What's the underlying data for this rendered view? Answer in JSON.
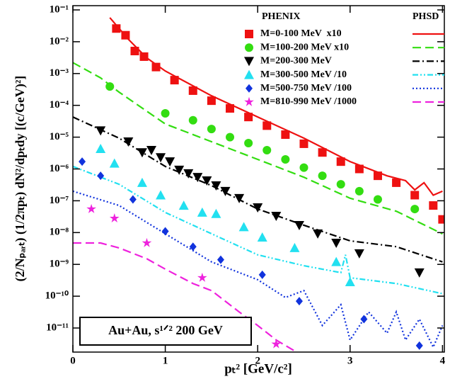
{
  "chart_data": {
    "type": "scatter",
    "log_y": true,
    "xlabel": "pₜ²  [GeV/c²]",
    "ylabel": "(2/Nₚₐᵣₜ) (1/2πpₜ) dN²/dpₜdy [(c/GeV)²]",
    "annotation": "Au+Au, s¹ᐟ² 200 GeV",
    "legend_data_header": "PHENIX",
    "legend_model_header": "PHSD",
    "legend_position": "upper right",
    "xlim": [
      0,
      4.02
    ],
    "ylim": [
      1.75e-12,
      0.136
    ],
    "xticks": [
      0,
      1,
      2,
      3,
      4
    ],
    "yticks": [
      {
        "value": 0.1,
        "label": "10⁻¹"
      },
      {
        "value": 0.01,
        "label": "10⁻²"
      },
      {
        "value": 0.001,
        "label": "10⁻³"
      },
      {
        "value": 0.0001,
        "label": "10⁻⁴"
      },
      {
        "value": 1e-05,
        "label": "10⁻⁵"
      },
      {
        "value": 1e-06,
        "label": "10⁻⁶"
      },
      {
        "value": 1e-07,
        "label": "10⁻⁷"
      },
      {
        "value": 1e-08,
        "label": "10⁻⁸"
      },
      {
        "value": 1e-09,
        "label": "10⁻⁹"
      },
      {
        "value": 1e-10,
        "label": "10⁻¹⁰"
      },
      {
        "value": 1e-11,
        "label": "10⁻¹¹"
      }
    ],
    "series": [
      {
        "name": "M=0-100 MeV  x10",
        "color": "#ee1111",
        "marker": "square",
        "x": [
          0.47,
          0.57,
          0.67,
          0.77,
          0.9,
          1.1,
          1.3,
          1.5,
          1.7,
          1.9,
          2.1,
          2.3,
          2.5,
          2.7,
          2.9,
          3.1,
          3.3,
          3.5,
          3.7,
          3.9,
          4.0
        ],
        "values": [
          0.026,
          0.016,
          0.0051,
          0.0034,
          0.0016,
          0.00062,
          0.00029,
          0.00014,
          8e-05,
          4.3e-05,
          2.3e-05,
          1.2e-05,
          6.2e-06,
          3.3e-06,
          1.7e-06,
          1e-06,
          6.1e-07,
          3.7e-07,
          1.5e-07,
          7.1e-08,
          2.6e-08
        ]
      },
      {
        "name": "M=100-200 MeV x10",
        "color": "#33dd11",
        "marker": "circle",
        "x": [
          0.4,
          1.0,
          1.3,
          1.5,
          1.7,
          1.9,
          2.1,
          2.3,
          2.5,
          2.7,
          2.9,
          3.1,
          3.3,
          3.7
        ],
        "values": [
          0.00039,
          5.6e-05,
          3.4e-05,
          1.8e-05,
          1e-05,
          6.5e-06,
          3.9e-06,
          2e-06,
          1.1e-06,
          6.1e-07,
          3.3e-07,
          2e-07,
          1.1e-07,
          5.5e-08
        ]
      },
      {
        "name": "M=200-300 MeV",
        "color": "#000000",
        "marker": "triangle-down",
        "x": [
          0.3,
          0.6,
          0.75,
          0.85,
          0.95,
          1.05,
          1.15,
          1.25,
          1.35,
          1.45,
          1.55,
          1.65,
          1.8,
          2.0,
          2.2,
          2.45,
          2.65,
          2.85,
          3.1,
          3.75
        ],
        "values": [
          1.6e-05,
          7.2e-06,
          3.3e-06,
          3.9e-06,
          2.3e-06,
          1.7e-06,
          9.3e-07,
          7.2e-07,
          5.5e-07,
          4.3e-07,
          3e-07,
          2e-07,
          1.2e-07,
          6.1e-08,
          3.3e-08,
          1.7e-08,
          9.2e-09,
          4.7e-09,
          2.2e-09,
          5.5e-10
        ]
      },
      {
        "name": "M=300-500 MeV /10",
        "color": "#22e0f0",
        "marker": "triangle-up",
        "x": [
          0.3,
          0.45,
          0.75,
          0.95,
          1.2,
          1.4,
          1.55,
          1.85,
          2.05,
          2.4,
          2.85,
          3.0
        ],
        "values": [
          4.3e-06,
          1.5e-06,
          3.7e-07,
          1.5e-07,
          7.1e-08,
          4.3e-08,
          3.9e-08,
          1.5e-08,
          7.1e-09,
          3.3e-09,
          1.2e-09,
          2.8e-10
        ]
      },
      {
        "name": "M=500-750 MeV /100",
        "color": "#1133dd",
        "marker": "diamond",
        "x": [
          0.1,
          0.3,
          0.65,
          1.0,
          1.3,
          1.6,
          2.05,
          2.45,
          3.15,
          3.75
        ],
        "values": [
          1.7e-06,
          6.1e-07,
          1.1e-07,
          1.1e-08,
          3.6e-09,
          1.4e-09,
          4.7e-10,
          7e-11,
          1.9e-11,
          2.8e-12
        ]
      },
      {
        "name": "M=810-990 MeV /1000",
        "color": "#ee22dd",
        "marker": "star",
        "x": [
          0.2,
          0.45,
          0.8,
          1.4,
          2.2
        ],
        "values": [
          5.5e-08,
          2.8e-08,
          4.7e-09,
          3.8e-10,
          3.1e-12
        ]
      }
    ],
    "model": [
      {
        "color": "#ee1111",
        "line_style": "solid",
        "x": [
          0.4,
          0.6,
          0.8,
          1.0,
          1.5,
          2.0,
          2.5,
          3.0,
          3.4,
          3.6,
          3.7,
          3.8,
          3.9,
          4.0
        ],
        "values": [
          0.057,
          0.012,
          0.0031,
          0.0012,
          0.0002,
          4.3e-05,
          9.3e-06,
          1.7e-06,
          6.1e-07,
          4.3e-07,
          2.2e-07,
          3.7e-07,
          1.5e-07,
          2e-07
        ]
      },
      {
        "color": "#33dd11",
        "line_style": "dashed",
        "x": [
          0,
          0.3,
          0.5,
          1.0,
          1.5,
          2.0,
          2.5,
          3.0,
          3.5,
          4.0
        ],
        "values": [
          0.0022,
          0.00073,
          0.00026,
          2.6e-05,
          7.2e-06,
          2e-06,
          5.5e-07,
          1.2e-07,
          4.7e-08,
          9.1e-09
        ]
      },
      {
        "color": "#000000",
        "line_style": "dashdot",
        "x": [
          0,
          0.5,
          1.0,
          1.5,
          2.0,
          2.5,
          3.0,
          3.5,
          4.0
        ],
        "values": [
          4.3e-05,
          9.3e-06,
          1.2e-06,
          3e-07,
          5.5e-08,
          1.7e-08,
          5.5e-09,
          3.6e-09,
          1.2e-09
        ]
      },
      {
        "color": "#22e0f0",
        "line_style": "dashdotdot",
        "x": [
          0,
          0.5,
          1.0,
          1.5,
          2.0,
          2.5,
          2.9,
          2.95,
          3.0,
          3.5,
          4.0
        ],
        "values": [
          1.2e-06,
          3.3e-07,
          4.3e-08,
          9.2e-09,
          2e-09,
          9.1e-10,
          5.5e-10,
          2e-09,
          3.8e-10,
          2.5e-10,
          1.2e-10
        ]
      },
      {
        "color": "#1133dd",
        "line_style": "dotted",
        "x": [
          0,
          0.5,
          1.0,
          1.5,
          2.0,
          2.3,
          2.5,
          2.7,
          2.9,
          3.0,
          3.2,
          3.4,
          3.5,
          3.6,
          3.75,
          3.9,
          4.0
        ],
        "values": [
          2e-07,
          7.1e-08,
          9.2e-09,
          1.2e-09,
          3.3e-10,
          9.1e-11,
          1.5e-10,
          1.2e-11,
          5.4e-11,
          4.2e-12,
          3.2e-11,
          6.9e-12,
          3.2e-11,
          4.2e-12,
          1.9e-11,
          2.5e-12,
          1.2e-11
        ]
      },
      {
        "color": "#ee22dd",
        "line_style": "dashed",
        "x": [
          0,
          0.3,
          0.5,
          0.8,
          1.0,
          1.3,
          1.5,
          1.8,
          2.0,
          2.2,
          2.4
        ],
        "values": [
          4.7e-09,
          4.7e-09,
          3.3e-09,
          1.5e-09,
          7.1e-10,
          2.5e-10,
          1.5e-10,
          3.2e-11,
          1.2e-11,
          4.2e-12,
          1.9e-12
        ]
      }
    ]
  }
}
